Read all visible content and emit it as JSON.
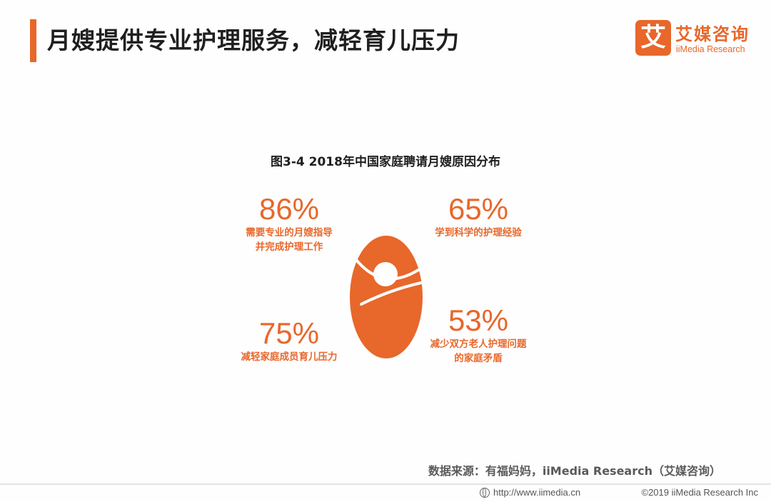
{
  "header": {
    "title": "月嫂提供专业护理服务，减轻育儿压力",
    "accent_color": "#e8672a"
  },
  "logo": {
    "mark": "艾",
    "name_cn": "艾媒咨询",
    "name_en": "iiMedia Research"
  },
  "chart_data": {
    "type": "table",
    "title": "图3-4 2018年中国家庭聘请月嫂原因分布",
    "unit": "%",
    "categories": [
      "需要专业的月嫂指导并完成护理工作",
      "学到科学的护理经验",
      "减轻家庭成员育儿压力",
      "减少双方老人护理问题的家庭矛盾"
    ],
    "values": [
      86,
      65,
      75,
      53
    ],
    "items": [
      {
        "value_label": "86%",
        "label_lines": [
          "需要专业的月嫂指导",
          "并完成护理工作"
        ]
      },
      {
        "value_label": "65%",
        "label_lines": [
          "学到科学的护理经验"
        ]
      },
      {
        "value_label": "75%",
        "label_lines": [
          "减轻家庭成员育儿压力"
        ]
      },
      {
        "value_label": "53%",
        "label_lines": [
          "减少双方老人护理问题",
          "的家庭矛盾"
        ]
      }
    ],
    "center_icon": "swaddled-baby-icon",
    "color": "#e8672a"
  },
  "source": "数据来源：有福妈妈，iiMedia Research（艾媒咨询）",
  "footer": {
    "url": "http://www.iimedia.cn",
    "copyright": "©2019  iiMedia Research  Inc"
  }
}
